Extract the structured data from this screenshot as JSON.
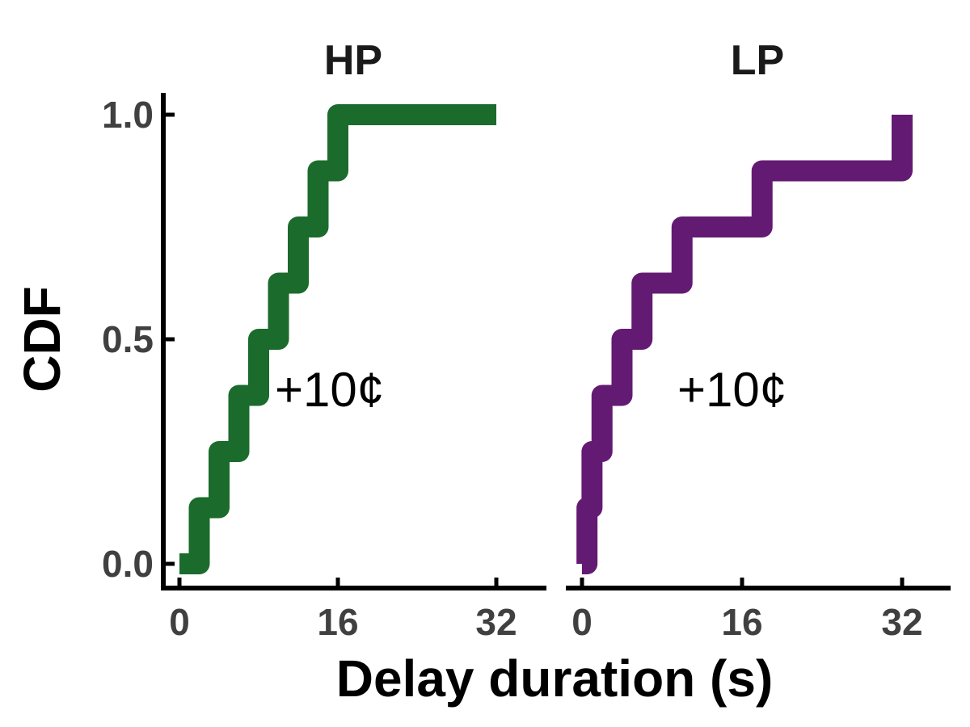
{
  "chart_data": [
    {
      "type": "line",
      "title": "HP",
      "ylabel": "CDF",
      "xlim": [
        0,
        36
      ],
      "ylim": [
        0,
        1
      ],
      "xticks": [
        "0",
        "16",
        "32"
      ],
      "yticks": [
        "0.0",
        "0.5",
        "1.0"
      ],
      "color": "#1b6b2c",
      "annotation": "+10¢",
      "steps": {
        "x": [
          0,
          2,
          4,
          6,
          8,
          10,
          12,
          14,
          16,
          32
        ],
        "y": [
          0,
          0.125,
          0.25,
          0.375,
          0.5,
          0.625,
          0.75,
          0.875,
          1.0,
          1.0
        ]
      }
    },
    {
      "type": "line",
      "title": "LP",
      "xlim": [
        0,
        36
      ],
      "ylim": [
        0,
        1
      ],
      "xticks": [
        "0",
        "16",
        "32"
      ],
      "color": "#631a72",
      "annotation": "+10¢",
      "steps": {
        "x": [
          0,
          0.5,
          1,
          2,
          4,
          6,
          10,
          18,
          32
        ],
        "y": [
          0,
          0.125,
          0.25,
          0.375,
          0.5,
          0.625,
          0.75,
          0.875,
          1.0
        ]
      }
    }
  ],
  "xlabel": "Delay duration (s)",
  "ylabel": "CDF"
}
